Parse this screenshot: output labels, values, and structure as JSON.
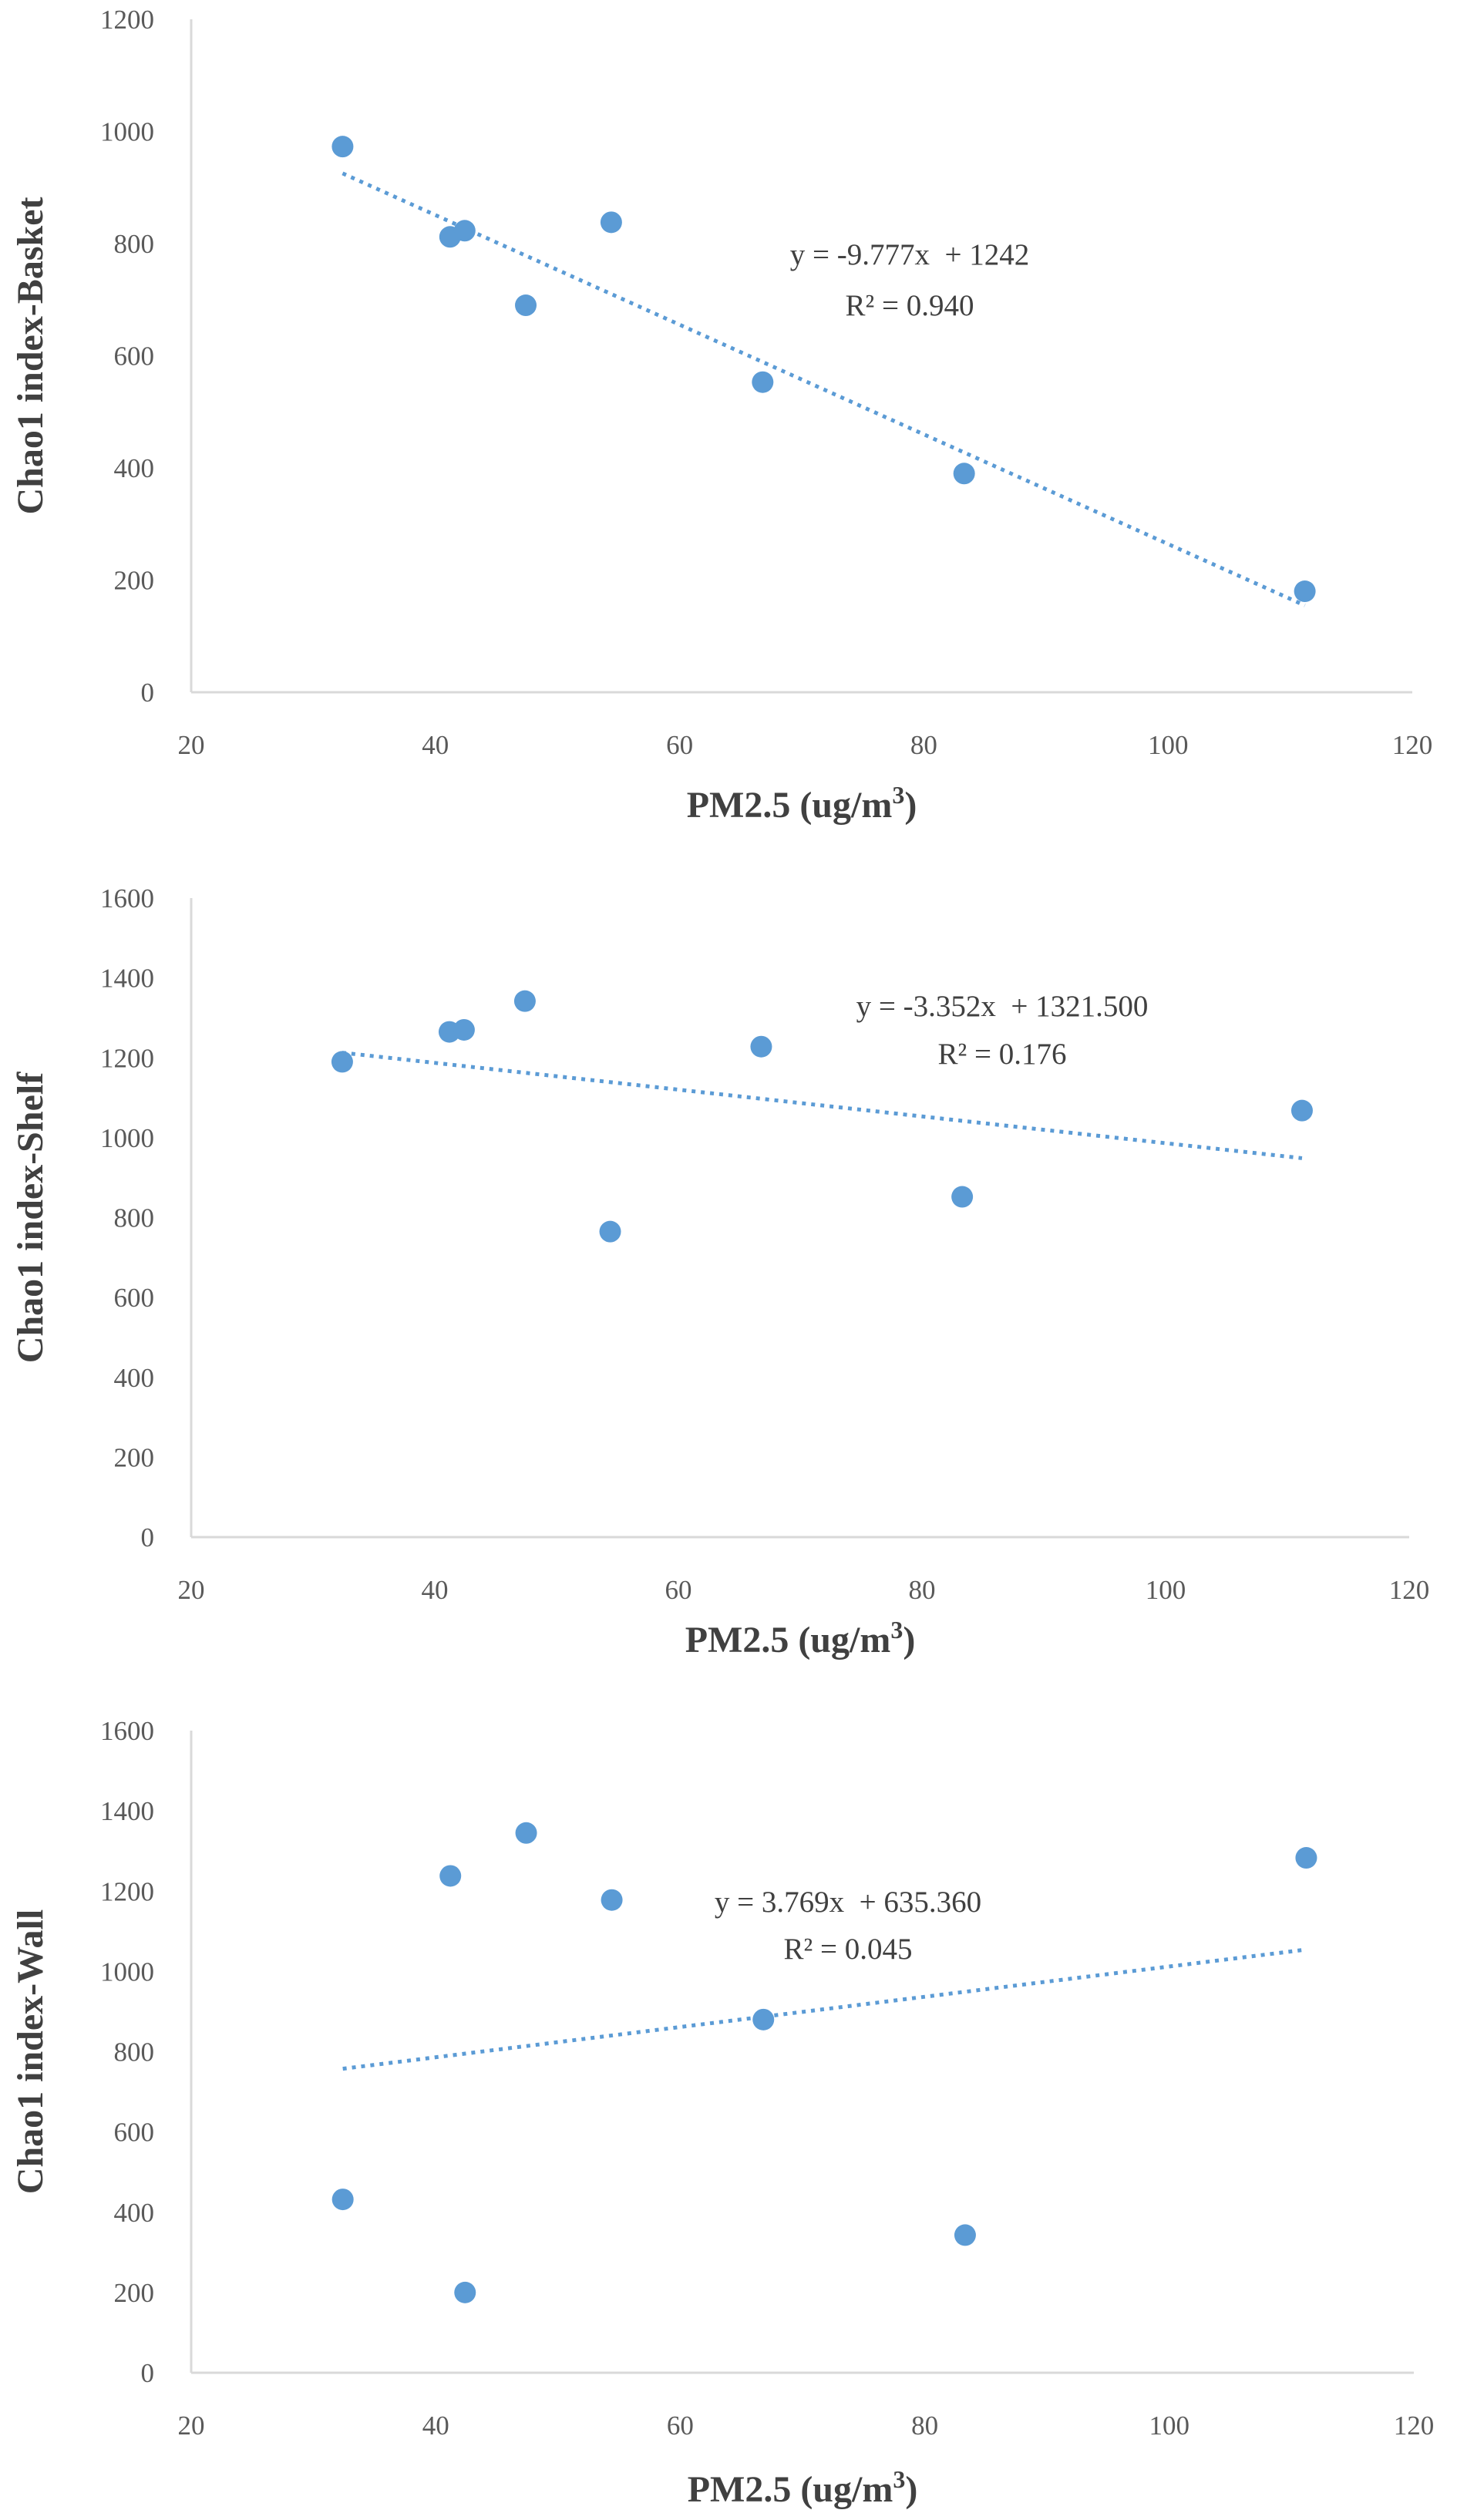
{
  "chart_data": [
    {
      "type": "scatter",
      "title": "",
      "xlabel": "PM2.5 (ug/m3)",
      "xlabel_main": "PM2.5 (ug/m",
      "xlabel_sup": "3",
      "xlabel_tail": ")",
      "ylabel": "Chao1 index-Basket",
      "xlim": [
        20,
        120
      ],
      "ylim": [
        0,
        1200
      ],
      "xticks": [
        "20",
        "40",
        "60",
        "80",
        "100",
        "120"
      ],
      "yticks": [
        "0",
        "200",
        "400",
        "600",
        "800",
        "1000",
        "1200"
      ],
      "x": [
        32.4,
        41.2,
        42.4,
        47.4,
        54.4,
        66.8,
        83.3,
        111.2
      ],
      "y": [
        973,
        812,
        823,
        690,
        838,
        553,
        390,
        180
      ],
      "trendline": {
        "type": "linear",
        "slope": -9.777,
        "intercept": 1242,
        "x_range": [
          32.4,
          111.2
        ]
      },
      "equation": "y = -9.777x  + 1242",
      "r2": "R² = 0.940",
      "grid": false,
      "legend": "none"
    },
    {
      "type": "scatter",
      "title": "",
      "xlabel": "PM2.5 (ug/m3)",
      "xlabel_main": "PM2.5 (ug/m",
      "xlabel_sup": "3",
      "xlabel_tail": ")",
      "ylabel": "Chao1 index-Shelf",
      "xlim": [
        20,
        120
      ],
      "ylim": [
        0,
        1600
      ],
      "xticks": [
        "20",
        "40",
        "60",
        "80",
        "100",
        "120"
      ],
      "yticks": [
        "0",
        "200",
        "400",
        "600",
        "800",
        "1000",
        "1200",
        "1400",
        "1600"
      ],
      "x": [
        32.4,
        41.2,
        42.4,
        47.4,
        54.4,
        66.8,
        83.3,
        111.2
      ],
      "y": [
        1190,
        1265,
        1270,
        1342,
        765,
        1228,
        852,
        1068
      ],
      "trendline": {
        "type": "linear",
        "slope": -3.352,
        "intercept": 1321.5,
        "x_range": [
          32.4,
          111.2
        ]
      },
      "equation": "y = -3.352x  + 1321.500",
      "r2": "R² = 0.176",
      "grid": false,
      "legend": "none"
    },
    {
      "type": "scatter",
      "title": "",
      "xlabel": "PM2.5 (ug/m3)",
      "xlabel_main": "PM2.5 (ug/m",
      "xlabel_sup": "3",
      "xlabel_tail": ")",
      "ylabel": "Chao1 index-Wall",
      "xlim": [
        20,
        120
      ],
      "ylim": [
        0,
        1600
      ],
      "xticks": [
        "20",
        "40",
        "60",
        "80",
        "100",
        "120"
      ],
      "yticks": [
        "0",
        "200",
        "400",
        "600",
        "800",
        "1000",
        "1200",
        "1400",
        "1600"
      ],
      "x": [
        32.4,
        41.2,
        42.4,
        47.4,
        54.4,
        66.8,
        83.3,
        111.2
      ],
      "y": [
        432,
        1238,
        200,
        1345,
        1178,
        880,
        343,
        1283
      ],
      "trendline": {
        "type": "linear",
        "slope": 3.769,
        "intercept": 635.36,
        "x_range": [
          32.4,
          111.2
        ]
      },
      "equation": "y = 3.769x  + 635.360",
      "r2": "R² = 0.045",
      "grid": false,
      "legend": "none"
    }
  ],
  "colors": {
    "series": "#5b9bd5",
    "axis": "#d9d9d9",
    "tick_text": "#595959",
    "title_text": "#404040"
  }
}
